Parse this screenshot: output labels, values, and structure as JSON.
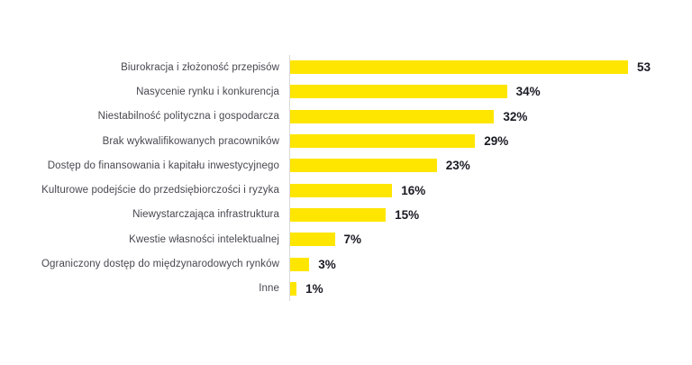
{
  "chart_data": {
    "type": "bar",
    "orientation": "horizontal",
    "title": "",
    "xlabel": "",
    "ylabel": "",
    "xlim": [
      0,
      53
    ],
    "grid": false,
    "legend": null,
    "bar_color": "#FFE600",
    "axis_line_color": "#D9D9D9",
    "label_color": "#474750",
    "value_color": "#1A1A24",
    "categories": [
      "Biurokracja i złożoność przepisów",
      "Nasycenie rynku i konkurencja",
      "Niestabilność polityczna i gospodarcza",
      "Brak wykwalifikowanych pracowników",
      "Dostęp do finansowania i kapitału inwestycyjnego",
      "Kulturowe podejście do przedsiębiorczości i ryzyka",
      "Niewystarczająca infrastruktura",
      "Kwestie własności intelektualnej",
      "Ograniczony dostęp do międzynarodowych rynków",
      "Inne"
    ],
    "values": [
      53,
      34,
      32,
      29,
      23,
      16,
      15,
      7,
      3,
      1
    ],
    "value_labels": [
      "53",
      "34%",
      "32%",
      "29%",
      "23%",
      "16%",
      "15%",
      "7%",
      "3%",
      "1%"
    ]
  }
}
